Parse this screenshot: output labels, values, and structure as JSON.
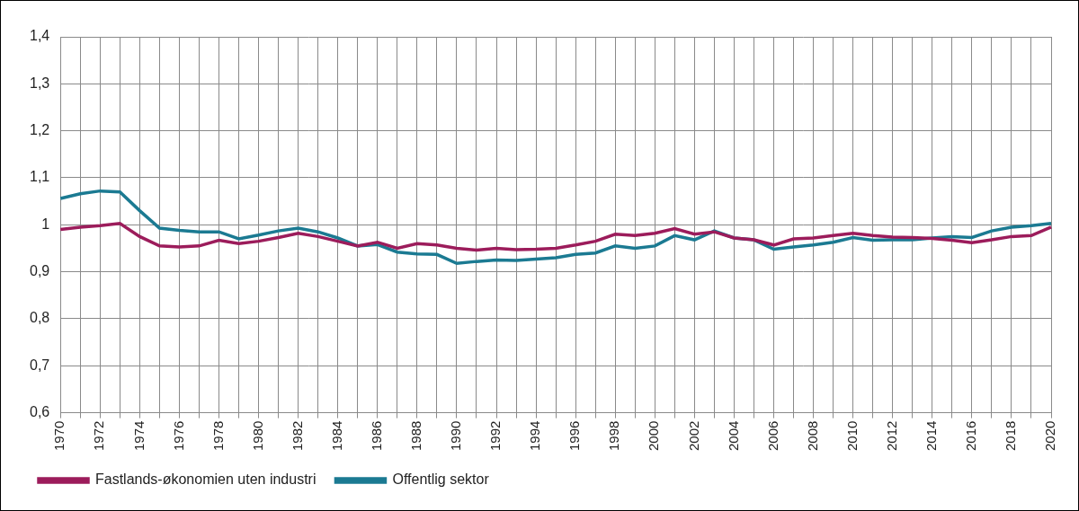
{
  "chart_data": {
    "type": "line",
    "categories": [
      1970,
      null,
      1972,
      null,
      1974,
      null,
      1976,
      null,
      1978,
      null,
      1980,
      null,
      1982,
      null,
      1984,
      null,
      1986,
      null,
      1988,
      null,
      1990,
      null,
      1992,
      null,
      1994,
      null,
      1996,
      null,
      1998,
      null,
      2000,
      null,
      2002,
      null,
      2004,
      null,
      2006,
      null,
      2008,
      null,
      2010,
      null,
      2012,
      null,
      2014,
      null,
      2016,
      null,
      2018,
      null,
      2020
    ],
    "series": [
      {
        "name": "Fastlands-økonomien uten industri",
        "color": "#9c1c5b",
        "values": [
          0.99,
          0.995,
          0.998,
          1.003,
          0.975,
          0.955,
          0.953,
          0.955,
          0.967,
          0.96,
          0.965,
          0.973,
          0.982,
          0.975,
          0.965,
          0.955,
          0.963,
          0.95,
          0.96,
          0.957,
          0.95,
          0.946,
          0.95,
          0.947,
          0.948,
          0.95,
          0.957,
          0.965,
          0.98,
          0.977,
          0.982,
          0.992,
          0.98,
          0.985,
          0.972,
          0.968,
          0.957,
          0.97,
          0.972,
          0.977,
          0.982,
          0.977,
          0.974,
          0.973,
          0.971,
          0.967,
          0.962,
          0.968,
          0.975,
          0.977,
          0.995
        ]
      },
      {
        "name": "Offentlig sektor",
        "color": "#1b7a92",
        "values": [
          1.056,
          1.066,
          1.072,
          1.07,
          1.03,
          0.993,
          0.988,
          0.985,
          0.985,
          0.97,
          0.978,
          0.987,
          0.993,
          0.985,
          0.972,
          0.955,
          0.958,
          0.942,
          0.938,
          0.937,
          0.918,
          0.922,
          0.925,
          0.924,
          0.927,
          0.93,
          0.937,
          0.94,
          0.955,
          0.95,
          0.955,
          0.977,
          0.968,
          0.987,
          0.972,
          0.968,
          0.948,
          0.953,
          0.957,
          0.963,
          0.973,
          0.967,
          0.968,
          0.968,
          0.972,
          0.975,
          0.973,
          0.987,
          0.995,
          0.998,
          1.003
        ]
      }
    ],
    "ylim": [
      0.6,
      1.4
    ],
    "yticks": [
      {
        "value": 0.6,
        "label": "0,6"
      },
      {
        "value": 0.7,
        "label": "0,7"
      },
      {
        "value": 0.8,
        "label": "0,8"
      },
      {
        "value": 0.9,
        "label": "0,9"
      },
      1,
      {
        "value": 1.1,
        "label": "1,1"
      },
      {
        "value": 1.2,
        "label": "1,2"
      },
      {
        "value": 1.3,
        "label": "1,3"
      },
      {
        "value": 1.4,
        "label": "1,4"
      }
    ],
    "grid": true,
    "legend": "bottom"
  }
}
